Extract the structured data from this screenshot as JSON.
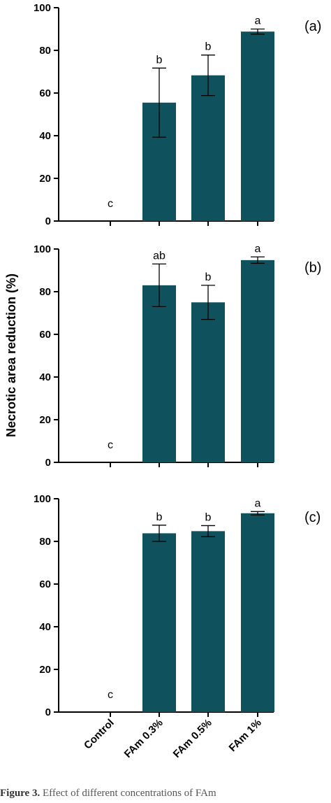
{
  "chart_data": [
    {
      "type": "bar",
      "panel_label": "(a)",
      "categories": [
        "Control",
        "FAm 0.3%",
        "FAm 0.5%",
        "FAm 1%"
      ],
      "values": [
        0,
        55.5,
        68.3,
        88.8
      ],
      "errors": [
        0,
        16.2,
        9.5,
        1.2
      ],
      "letters": [
        "c",
        "b",
        "b",
        "a"
      ],
      "ylim": [
        0,
        100
      ],
      "yticks": [
        0,
        20,
        40,
        60,
        80,
        100
      ]
    },
    {
      "type": "bar",
      "panel_label": "(b)",
      "categories": [
        "Control",
        "FAm 0.3%",
        "FAm 0.5%",
        "FAm 1%"
      ],
      "values": [
        0,
        83.0,
        75.0,
        94.8
      ],
      "errors": [
        0,
        10.0,
        8.0,
        1.5
      ],
      "letters": [
        "c",
        "ab",
        "b",
        "a"
      ],
      "ylim": [
        0,
        100
      ],
      "yticks": [
        0,
        20,
        40,
        60,
        80,
        100
      ]
    },
    {
      "type": "bar",
      "panel_label": "(c)",
      "categories": [
        "Control",
        "FAm 0.3%",
        "FAm 0.5%",
        "FAm 1%"
      ],
      "values": [
        0,
        83.8,
        84.8,
        93.2
      ],
      "errors": [
        0,
        3.8,
        2.6,
        0.8
      ],
      "letters": [
        "c",
        "b",
        "b",
        "a"
      ],
      "ylim": [
        0,
        100
      ],
      "yticks": [
        0,
        20,
        40,
        60,
        80,
        100
      ]
    }
  ],
  "ylabel": "Necrotic area reduction (%)",
  "bar_color": "#0f525e",
  "caption": {
    "bold": "Figure 3.",
    "text": " Effect of different concentrations of FAm"
  }
}
